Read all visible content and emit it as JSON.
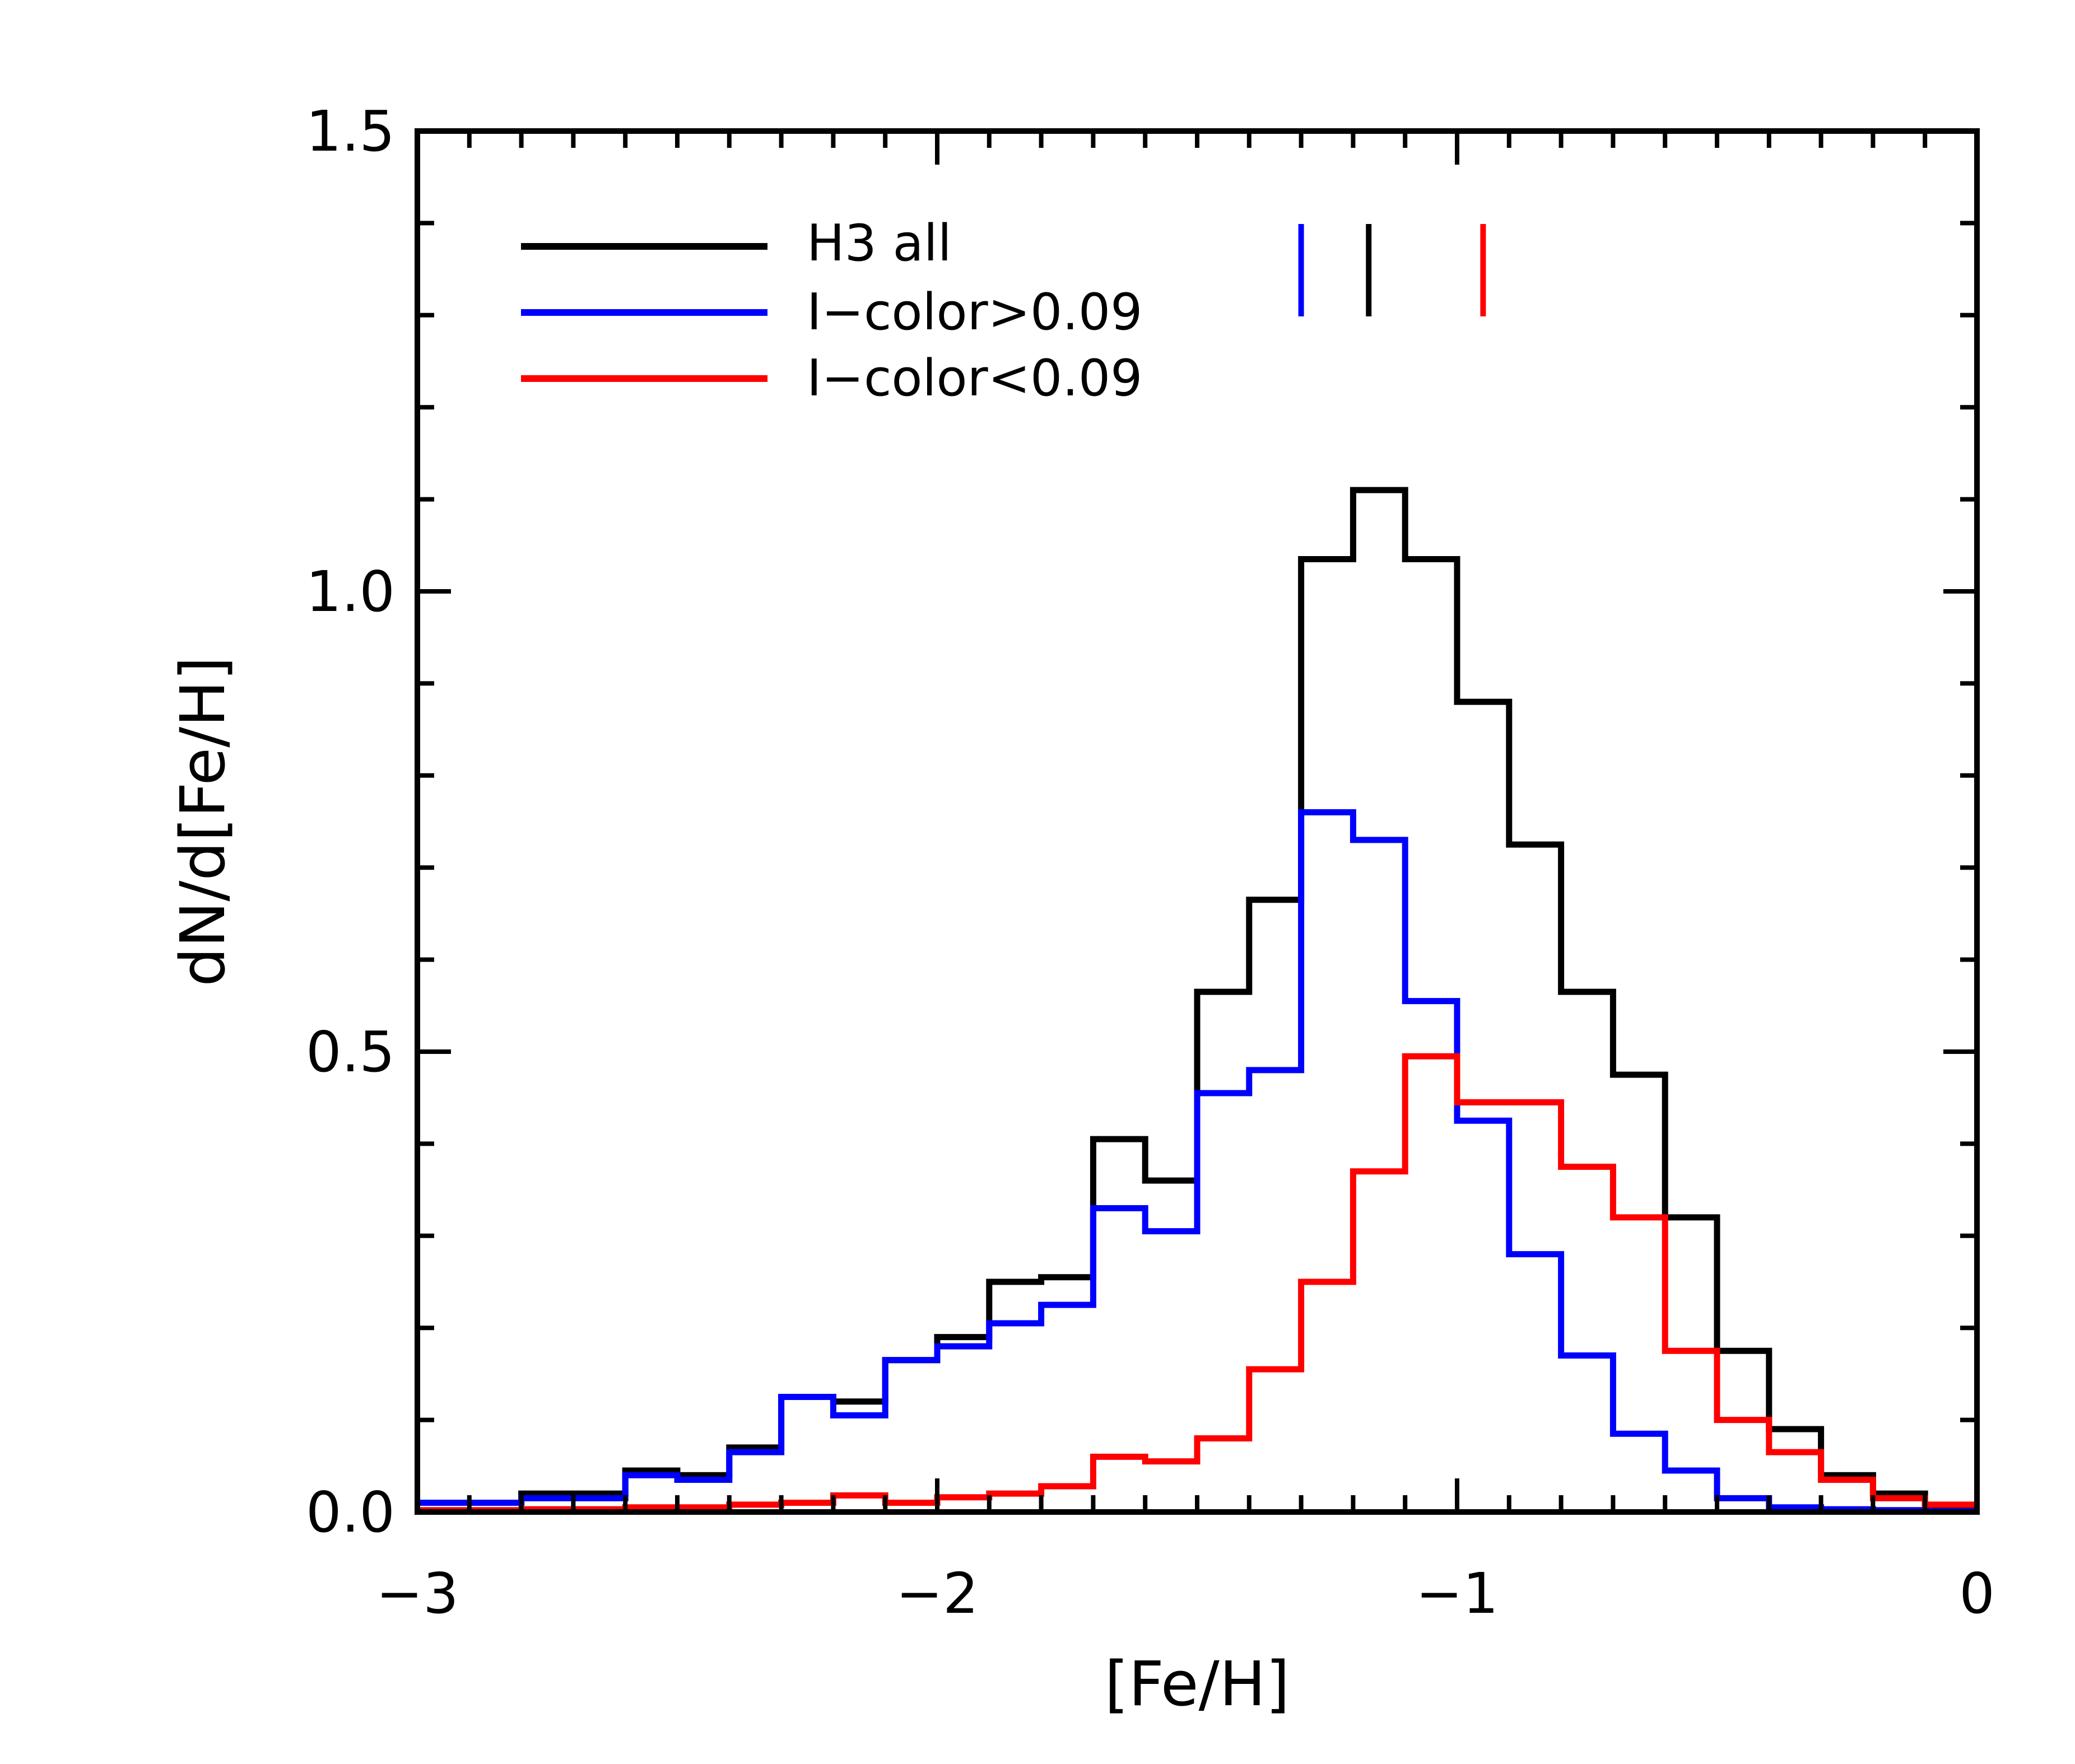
{
  "chart_data": {
    "type": "line",
    "xlabel": "[Fe/H]",
    "ylabel": "dN/d[Fe/H]",
    "xlim": [
      -3,
      0
    ],
    "ylim": [
      0,
      1.5
    ],
    "x_ticks": [
      -3,
      -2,
      -1,
      0
    ],
    "x_tick_labels": [
      "−3",
      "−2",
      "−1",
      "0"
    ],
    "y_ticks": [
      0,
      0.5,
      1,
      1.5
    ],
    "y_tick_labels": [
      "0.0",
      "0.5",
      "1.0",
      "1.5"
    ],
    "bin_edges": [
      -3.0,
      -2.9,
      -2.8,
      -2.7,
      -2.6,
      -2.5,
      -2.4,
      -2.3,
      -2.2,
      -2.1,
      -2.0,
      -1.9,
      -1.8,
      -1.7,
      -1.6,
      -1.5,
      -1.4,
      -1.3,
      -1.2,
      -1.1,
      -1.0,
      -0.9,
      -0.8,
      -0.7,
      -0.6,
      -0.5,
      -0.4,
      -0.3,
      -0.2,
      -0.1,
      0.0
    ],
    "series": [
      {
        "name": "H3 all",
        "color": "#000000",
        "values": [
          0.01,
          0.01,
          0.02,
          0.02,
          0.045,
          0.04,
          0.07,
          0.125,
          0.12,
          0.165,
          0.19,
          0.25,
          0.255,
          0.405,
          0.36,
          0.565,
          0.665,
          1.035,
          1.11,
          1.035,
          0.88,
          0.725,
          0.565,
          0.475,
          0.32,
          0.175,
          0.09,
          0.04,
          0.02,
          0.005
        ]
      },
      {
        "name": "I−color>0.09",
        "color": "#0000ff",
        "values": [
          0.01,
          0.01,
          0.015,
          0.015,
          0.04,
          0.035,
          0.065,
          0.125,
          0.105,
          0.165,
          0.18,
          0.205,
          0.225,
          0.33,
          0.305,
          0.455,
          0.48,
          0.76,
          0.73,
          0.555,
          0.425,
          0.28,
          0.17,
          0.085,
          0.045,
          0.015,
          0.005,
          0.003,
          0.002,
          0.001
        ]
      },
      {
        "name": "I−color<0.09",
        "color": "#ff0000",
        "values": [
          0.002,
          0.002,
          0.003,
          0.003,
          0.005,
          0.005,
          0.008,
          0.01,
          0.018,
          0.01,
          0.016,
          0.02,
          0.028,
          0.06,
          0.055,
          0.08,
          0.155,
          0.25,
          0.37,
          0.495,
          0.445,
          0.445,
          0.375,
          0.32,
          0.175,
          0.1,
          0.065,
          0.035,
          0.015,
          0.008
        ]
      }
    ],
    "legend": {
      "placement": "top-left",
      "entries": [
        "H3 all",
        "I−color>0.09",
        "I−color<0.09"
      ]
    },
    "markers": [
      {
        "x": -1.3,
        "color": "#0000ff"
      },
      {
        "x": -1.17,
        "color": "#000000"
      },
      {
        "x": -0.95,
        "color": "#ff0000"
      }
    ],
    "grid": false
  }
}
